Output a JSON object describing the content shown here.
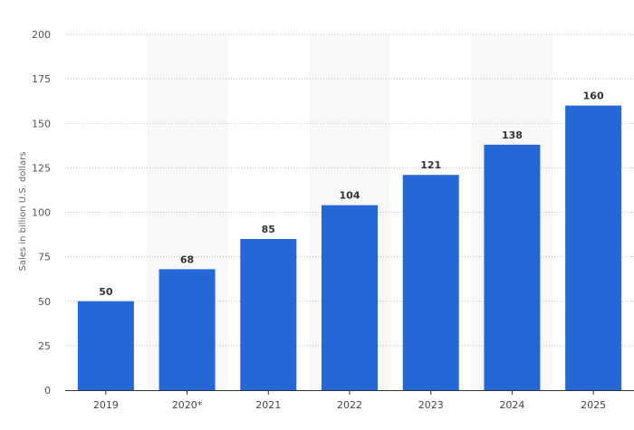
{
  "chart_data": {
    "type": "bar",
    "categories": [
      "2019",
      "2020*",
      "2021",
      "2022",
      "2023",
      "2024",
      "2025"
    ],
    "values": [
      50,
      68,
      85,
      104,
      121,
      138,
      160
    ],
    "value_labels": [
      "50",
      "68",
      "85",
      "104",
      "121",
      "138",
      "160"
    ],
    "title": "",
    "xlabel": "",
    "ylabel": "Sales in billion U.S. dollars",
    "ylim": [
      0,
      200
    ],
    "yticks": [
      0,
      25,
      50,
      75,
      100,
      125,
      150,
      175,
      200
    ],
    "ytick_labels": [
      "0",
      "25",
      "50",
      "75",
      "100",
      "125",
      "150",
      "175",
      "200"
    ],
    "grid": true,
    "legend": "none",
    "bar_color": "#2567d6",
    "alt_band_color": "#f8f8f8"
  }
}
